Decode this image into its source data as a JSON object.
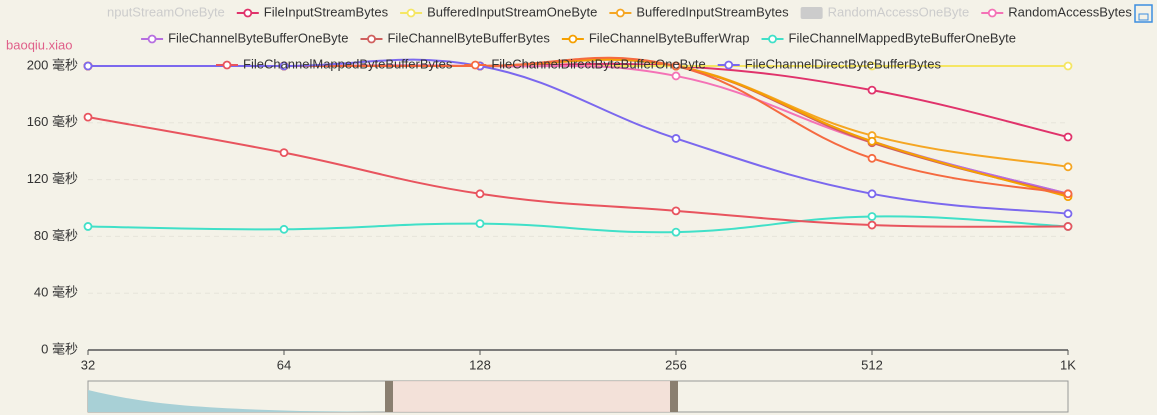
{
  "chart_data": {
    "type": "line",
    "subtitle": "baoqiu.xiao",
    "categories": [
      "32",
      "64",
      "128",
      "256",
      "512",
      "1K"
    ],
    "ylim": [
      0,
      200
    ],
    "yticks": [
      {
        "value": 0,
        "label": "0 毫秒"
      },
      {
        "value": 40,
        "label": "40 毫秒"
      },
      {
        "value": 80,
        "label": "80 毫秒"
      },
      {
        "value": 120,
        "label": "120 毫秒"
      },
      {
        "value": 160,
        "label": "160 毫秒"
      },
      {
        "value": 200,
        "label": "200 毫秒"
      }
    ],
    "grid": true,
    "smooth": true,
    "series": [
      {
        "name": "nputStreamOneByte",
        "color": "#cccccc",
        "disabled": true,
        "values": [
          null,
          null,
          null,
          null,
          null,
          null
        ]
      },
      {
        "name": "FileInputStreamBytes",
        "color": "#e0336b",
        "values": [
          200,
          200,
          200,
          200,
          183,
          150
        ]
      },
      {
        "name": "BufferedInputStreamOneByte",
        "color": "#f5e663",
        "values": [
          200,
          200,
          200,
          200,
          200,
          200
        ]
      },
      {
        "name": "BufferedInputStreamBytes",
        "color": "#f5a623",
        "values": [
          200,
          200,
          200,
          200,
          151,
          129
        ]
      },
      {
        "name": "RandomAccessOneByte",
        "color": "#cccccc",
        "disabled": true,
        "values": [
          null,
          null,
          null,
          null,
          null,
          null
        ]
      },
      {
        "name": "RandomAccessBytes",
        "color": "#f472b6",
        "values": [
          200,
          200,
          200,
          193,
          146,
          110
        ]
      },
      {
        "name": "FileChannelByteBufferOneByte",
        "color": "#b66ee0",
        "values": [
          200,
          200,
          200,
          200,
          147,
          110
        ]
      },
      {
        "name": "FileChannelByteBufferBytes",
        "color": "#d0605e",
        "values": [
          200,
          200,
          200,
          200,
          146,
          109
        ]
      },
      {
        "name": "FileChannelByteBufferWrap",
        "color": "#f5a000",
        "values": [
          200,
          200,
          200,
          200,
          147,
          108
        ]
      },
      {
        "name": "FileChannelMappedByteBufferOneByte",
        "color": "#40e0c8",
        "values": [
          87,
          85,
          89,
          83,
          94,
          87
        ]
      },
      {
        "name": "FileChannelMappedByteBufferBytes",
        "color": "#e8545e",
        "values": [
          164,
          139,
          110,
          98,
          88,
          87
        ]
      },
      {
        "name": "FileChannelDirectByteBufferOneByte",
        "color": "#f56a40",
        "values": [
          200,
          200,
          200,
          200,
          135,
          110
        ]
      },
      {
        "name": "FileChannelDirectByteBufferBytes",
        "color": "#7b68ee",
        "values": [
          200,
          200,
          200,
          149,
          110,
          96
        ]
      }
    ]
  }
}
